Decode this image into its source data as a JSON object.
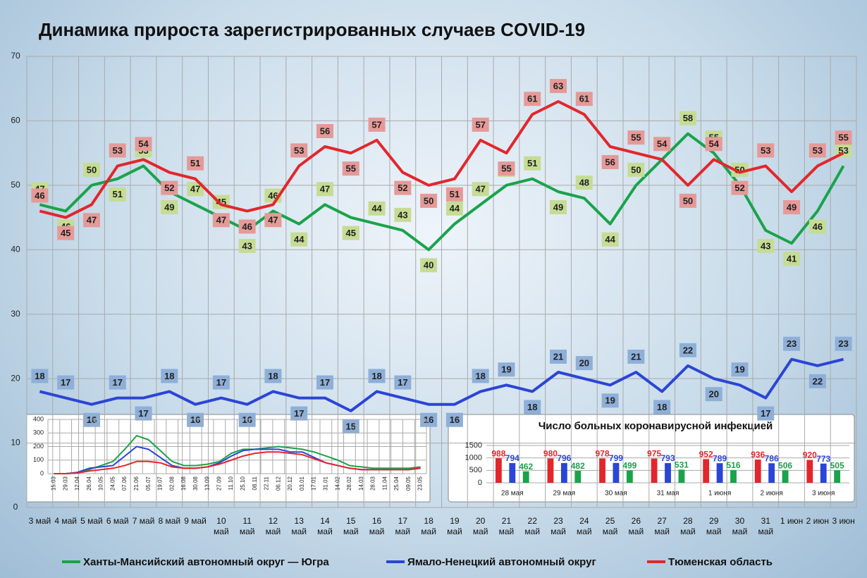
{
  "chart_data": [
    {
      "type": "line",
      "title": "Динамика прироста зарегистрированных случаев COVID-19",
      "categories": [
        "3 май",
        "4 май",
        "5 май",
        "6 май",
        "7 май",
        "8 май",
        "9 май",
        "10 май",
        "11 май",
        "12 май",
        "13 май",
        "14 май",
        "15 май",
        "16 май",
        "17 май",
        "18 май",
        "19 май",
        "20 май",
        "21 май",
        "22 май",
        "23 май",
        "24 май",
        "25 май",
        "26 май",
        "27 май",
        "28 май",
        "29 май",
        "30 май",
        "31 май",
        "1 июн",
        "2 июн",
        "3 июн"
      ],
      "series": [
        {
          "name": "Ханты-Мансийский автономный округ — Югра",
          "color": "#1aa34a",
          "label_color": "#c6dc94",
          "values": [
            47,
            46,
            50,
            51,
            53,
            49,
            47,
            45,
            43,
            46,
            44,
            47,
            45,
            44,
            43,
            40,
            44,
            47,
            50,
            51,
            49,
            48,
            44,
            50,
            54,
            58,
            55,
            50,
            43,
            41,
            46,
            53
          ]
        },
        {
          "name": "Ямало-Ненецкий автономный округ",
          "color": "#2b45d6",
          "label_color": "#8eafd8",
          "values": [
            18,
            17,
            16,
            17,
            17,
            18,
            16,
            17,
            16,
            18,
            17,
            17,
            15,
            18,
            17,
            16,
            16,
            18,
            19,
            18,
            21,
            20,
            19,
            21,
            18,
            22,
            20,
            19,
            17,
            23,
            22,
            23
          ]
        },
        {
          "name": "Тюменская область",
          "color": "#e3262b",
          "label_color": "#e59a98",
          "values": [
            46,
            45,
            47,
            53,
            54,
            52,
            51,
            47,
            46,
            47,
            53,
            56,
            55,
            57,
            52,
            50,
            51,
            57,
            55,
            61,
            63,
            61,
            56,
            55,
            54,
            50,
            54,
            52,
            53,
            49,
            53,
            55
          ]
        }
      ],
      "ylim": [
        0,
        70
      ],
      "yticks": [
        0,
        10,
        20,
        30,
        40,
        50,
        60,
        70
      ],
      "grid": true,
      "legend": "bottom"
    },
    {
      "type": "line",
      "categories": [
        "15.03",
        "29.03",
        "12.04",
        "26.04",
        "10.05",
        "24.05",
        "07.06",
        "21.06",
        "05.07",
        "19.07",
        "02.08",
        "16.08",
        "30.08",
        "13.09",
        "27.09",
        "11.10",
        "25.10",
        "08.11",
        "22.11",
        "06.12",
        "20.12",
        "03.01",
        "17.01",
        "31.01",
        "14.02",
        "28.02",
        "14.03",
        "28.03",
        "11.04",
        "25.04",
        "09.05",
        "23.05"
      ],
      "series": [
        {
          "color": "#1aa34a",
          "values": [
            0,
            0,
            5,
            30,
            60,
            90,
            180,
            280,
            250,
            170,
            90,
            60,
            60,
            70,
            90,
            150,
            180,
            180,
            190,
            200,
            190,
            180,
            160,
            130,
            100,
            60,
            50,
            40,
            40,
            40,
            40,
            50
          ]
        },
        {
          "color": "#2b45d6",
          "values": [
            0,
            0,
            10,
            40,
            50,
            60,
            130,
            200,
            180,
            120,
            60,
            40,
            40,
            50,
            80,
            130,
            170,
            180,
            180,
            180,
            160,
            160,
            120,
            80,
            60,
            40,
            30,
            30,
            30,
            30,
            30,
            40
          ]
        },
        {
          "color": "#e3262b",
          "values": [
            0,
            0,
            5,
            20,
            30,
            40,
            60,
            90,
            90,
            80,
            50,
            40,
            40,
            50,
            70,
            100,
            130,
            150,
            160,
            160,
            150,
            140,
            110,
            80,
            60,
            40,
            30,
            30,
            30,
            30,
            30,
            40
          ]
        }
      ],
      "ylim": [
        0,
        400
      ],
      "yticks": [
        0,
        100,
        200,
        300,
        400
      ],
      "grid": true
    },
    {
      "type": "bar",
      "title": "Число больных коронавирусной инфекцией",
      "categories": [
        "28 мая",
        "29 мая",
        "30 мая",
        "31 мая",
        "1 июня",
        "2 июня",
        "3 июня"
      ],
      "series": [
        {
          "color": "#e3262b",
          "values": [
            988,
            980,
            978,
            975,
            952,
            936,
            920
          ]
        },
        {
          "color": "#2b45d6",
          "values": [
            794,
            796,
            799,
            793,
            789,
            786,
            773
          ]
        },
        {
          "color": "#1aa34a",
          "values": [
            462,
            482,
            499,
            531,
            516,
            506,
            505
          ]
        }
      ],
      "ylim": [
        0,
        1500
      ],
      "yticks": [
        0,
        500,
        1000,
        1500
      ],
      "grid": true
    }
  ]
}
